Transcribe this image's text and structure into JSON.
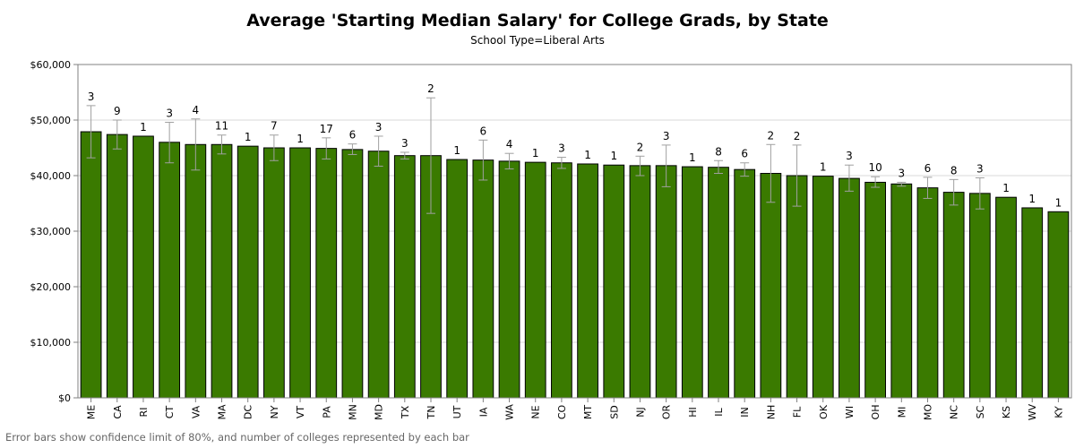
{
  "chart_data": {
    "type": "bar",
    "title": "Average 'Starting Median Salary' for College Grads, by State",
    "subtitle": "School Type=Liberal Arts",
    "footnote": "Error bars show confidence limit of 80%, and number of colleges represented by each bar",
    "xlabel": "",
    "ylabel": "",
    "ylim": [
      0,
      60000
    ],
    "yticks": [
      0,
      10000,
      20000,
      30000,
      40000,
      50000,
      60000
    ],
    "ytick_labels": [
      "$0",
      "$10,000",
      "$20,000",
      "$30,000",
      "$40,000",
      "$50,000",
      "$60,000"
    ],
    "grid": true,
    "bar_color": "#3a7a00",
    "error_bar_color": "#a0a0a0",
    "categories": [
      "ME",
      "CA",
      "RI",
      "CT",
      "VA",
      "MA",
      "DC",
      "NY",
      "VT",
      "PA",
      "MN",
      "MD",
      "TX",
      "TN",
      "UT",
      "IA",
      "WA",
      "NE",
      "CO",
      "MT",
      "SD",
      "NJ",
      "OR",
      "HI",
      "IL",
      "IN",
      "NH",
      "FL",
      "OK",
      "WI",
      "OH",
      "MI",
      "MO",
      "NC",
      "SC",
      "KS",
      "WV",
      "KY"
    ],
    "values": [
      47900,
      47400,
      47100,
      46000,
      45600,
      45600,
      45300,
      45000,
      45000,
      44900,
      44700,
      44400,
      43600,
      43600,
      42900,
      42800,
      42600,
      42400,
      42300,
      42100,
      41900,
      41800,
      41800,
      41600,
      41500,
      41100,
      40400,
      40000,
      39900,
      39500,
      38800,
      38500,
      37800,
      37000,
      36800,
      36100,
      34200,
      33500
    ],
    "error_low": [
      43200,
      44800,
      null,
      42300,
      41000,
      43900,
      null,
      42700,
      null,
      43000,
      43800,
      41700,
      43000,
      33200,
      null,
      39200,
      41200,
      null,
      41300,
      null,
      null,
      40000,
      38000,
      null,
      40400,
      39900,
      35200,
      34500,
      null,
      37200,
      37900,
      38100,
      35900,
      34700,
      34000,
      null,
      null,
      null
    ],
    "error_high": [
      52600,
      50000,
      null,
      49600,
      50200,
      47300,
      null,
      47300,
      null,
      46800,
      45700,
      47100,
      44200,
      54000,
      null,
      46400,
      44000,
      null,
      43300,
      null,
      null,
      43500,
      45500,
      null,
      42700,
      42300,
      45600,
      45500,
      null,
      41900,
      39800,
      38800,
      39700,
      39300,
      39600,
      null,
      null,
      null
    ],
    "counts": [
      "3",
      "9",
      "1",
      "3",
      "4",
      "11",
      "1",
      "7",
      "1",
      "17",
      "6",
      "3",
      "3",
      "2",
      "1",
      "6",
      "4",
      "1",
      "3",
      "1",
      "1",
      "2",
      "3",
      "1",
      "8",
      "6",
      "2",
      "2",
      "1",
      "3",
      "10",
      "3",
      "6",
      "8",
      "3",
      "1",
      "1",
      "1"
    ]
  }
}
